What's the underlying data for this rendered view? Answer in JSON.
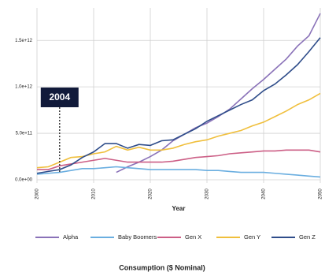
{
  "chart_data": {
    "type": "line",
    "title": "Consumption ($ Nominal)",
    "x_label": "Year",
    "x": [
      2000,
      2002,
      2004,
      2006,
      2008,
      2010,
      2012,
      2014,
      2016,
      2018,
      2020,
      2022,
      2024,
      2026,
      2028,
      2030,
      2032,
      2034,
      2036,
      2038,
      2040,
      2042,
      2044,
      2046,
      2048,
      2050
    ],
    "xlim": [
      2000,
      2050
    ],
    "xticks": [
      2000,
      2010,
      2020,
      2030,
      2040,
      2050
    ],
    "ylim": [
      0,
      1850000000000.0
    ],
    "yticks": [
      {
        "value": 0,
        "label": "0.0e+00"
      },
      {
        "value": 500000000000.0,
        "label": "5.0e+11"
      },
      {
        "value": 1000000000000.0,
        "label": "1.0e+12"
      },
      {
        "value": 1500000000000.0,
        "label": "1.5e+12"
      }
    ],
    "grid": true,
    "legend": "bottom",
    "annotation": {
      "x": 2004
    },
    "series": [
      {
        "name": "Alpha",
        "color": "#8a72b8",
        "values": [
          null,
          null,
          null,
          null,
          null,
          null,
          null,
          80000000000.0,
          140000000000.0,
          190000000000.0,
          250000000000.0,
          320000000000.0,
          420000000000.0,
          490000000000.0,
          560000000000.0,
          610000000000.0,
          680000000000.0,
          760000000000.0,
          870000000000.0,
          980000000000.0,
          1080000000000.0,
          1190000000000.0,
          1300000000000.0,
          1440000000000.0,
          1550000000000.0,
          1790000000000.0
        ]
      },
      {
        "name": "Baby Boomers",
        "color": "#6aaee0",
        "values": [
          60000000000.0,
          70000000000.0,
          80000000000.0,
          100000000000.0,
          120000000000.0,
          120000000000.0,
          130000000000.0,
          140000000000.0,
          130000000000.0,
          120000000000.0,
          110000000000.0,
          110000000000.0,
          110000000000.0,
          110000000000.0,
          110000000000.0,
          100000000000.0,
          100000000000.0,
          90000000000.0,
          80000000000.0,
          80000000000.0,
          80000000000.0,
          70000000000.0,
          60000000000.0,
          50000000000.0,
          40000000000.0,
          30000000000.0
        ]
      },
      {
        "name": "Gen X",
        "color": "#cc5f86",
        "values": [
          110000000000.0,
          110000000000.0,
          150000000000.0,
          170000000000.0,
          190000000000.0,
          210000000000.0,
          230000000000.0,
          210000000000.0,
          190000000000.0,
          190000000000.0,
          190000000000.0,
          190000000000.0,
          200000000000.0,
          220000000000.0,
          240000000000.0,
          250000000000.0,
          260000000000.0,
          280000000000.0,
          290000000000.0,
          300000000000.0,
          310000000000.0,
          310000000000.0,
          320000000000.0,
          320000000000.0,
          320000000000.0,
          300000000000.0
        ]
      },
      {
        "name": "Gen Y",
        "color": "#f0bf3c",
        "values": [
          130000000000.0,
          140000000000.0,
          190000000000.0,
          240000000000.0,
          250000000000.0,
          280000000000.0,
          300000000000.0,
          360000000000.0,
          320000000000.0,
          350000000000.0,
          320000000000.0,
          320000000000.0,
          340000000000.0,
          380000000000.0,
          410000000000.0,
          430000000000.0,
          470000000000.0,
          500000000000.0,
          530000000000.0,
          580000000000.0,
          620000000000.0,
          680000000000.0,
          740000000000.0,
          810000000000.0,
          860000000000.0,
          930000000000.0
        ]
      },
      {
        "name": "Gen Z",
        "color": "#2f4d8a",
        "values": [
          70000000000.0,
          90000000000.0,
          110000000000.0,
          160000000000.0,
          240000000000.0,
          300000000000.0,
          390000000000.0,
          390000000000.0,
          340000000000.0,
          380000000000.0,
          370000000000.0,
          420000000000.0,
          430000000000.0,
          490000000000.0,
          550000000000.0,
          630000000000.0,
          690000000000.0,
          750000000000.0,
          810000000000.0,
          860000000000.0,
          960000000000.0,
          1030000000000.0,
          1130000000000.0,
          1240000000000.0,
          1380000000000.0,
          1530000000000.0
        ]
      }
    ]
  }
}
